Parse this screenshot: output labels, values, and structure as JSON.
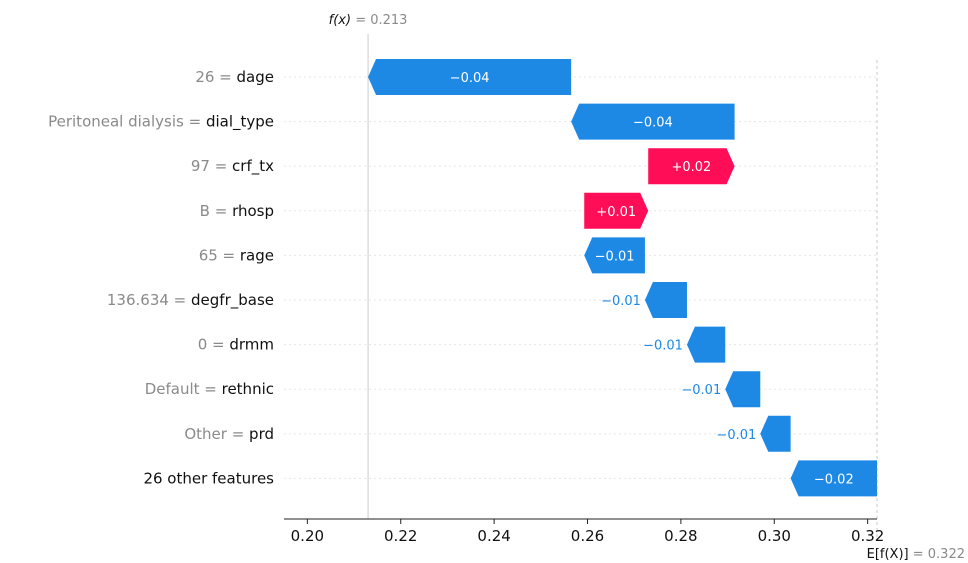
{
  "chart_data": {
    "type": "waterfall",
    "fx_label": "f(x)",
    "fx_value": "0.213",
    "fx_number": 0.213,
    "ex_label": "E[f(X)]",
    "ex_value": "0.322",
    "ex_number": 0.322,
    "xlim": [
      0.195,
      0.322
    ],
    "ticks": [
      {
        "value": 0.2,
        "label": "0.20"
      },
      {
        "value": 0.22,
        "label": "0.22"
      },
      {
        "value": 0.24,
        "label": "0.24"
      },
      {
        "value": 0.26,
        "label": "0.26"
      },
      {
        "value": 0.28,
        "label": "0.28"
      },
      {
        "value": 0.3,
        "label": "0.30"
      },
      {
        "value": 0.32,
        "label": "0.32"
      }
    ],
    "features": [
      {
        "value_text": "26",
        "name": "dage",
        "start": 0.2565,
        "end": 0.213,
        "label": "−0.04",
        "sign": "neg"
      },
      {
        "value_text": "Peritoneal dialysis",
        "name": "dial_type",
        "start": 0.2915,
        "end": 0.2565,
        "label": "−0.04",
        "sign": "neg"
      },
      {
        "value_text": "97",
        "name": "crf_tx",
        "start": 0.273,
        "end": 0.2915,
        "label": "+0.02",
        "sign": "pos"
      },
      {
        "value_text": "B",
        "name": "rhosp",
        "start": 0.2593,
        "end": 0.273,
        "label": "+0.01",
        "sign": "pos"
      },
      {
        "value_text": "65",
        "name": "rage",
        "start": 0.2723,
        "end": 0.2593,
        "label": "−0.01",
        "sign": "neg"
      },
      {
        "value_text": "136.634",
        "name": "degfr_base",
        "start": 0.2813,
        "end": 0.2723,
        "label": "−0.01",
        "sign": "neg"
      },
      {
        "value_text": "0",
        "name": "drmm",
        "start": 0.2895,
        "end": 0.2813,
        "label": "−0.01",
        "sign": "neg"
      },
      {
        "value_text": "Default",
        "name": "rethnic",
        "start": 0.297,
        "end": 0.2895,
        "label": "−0.01",
        "sign": "neg"
      },
      {
        "value_text": "Other",
        "name": "prd",
        "start": 0.3035,
        "end": 0.297,
        "label": "−0.01",
        "sign": "neg"
      },
      {
        "value_text": "",
        "name": "26 other features",
        "start": 0.322,
        "end": 0.3035,
        "label": "−0.02",
        "sign": "neg"
      }
    ],
    "colors": {
      "positive": "#ff0d57",
      "negative": "#1e88e5"
    }
  }
}
